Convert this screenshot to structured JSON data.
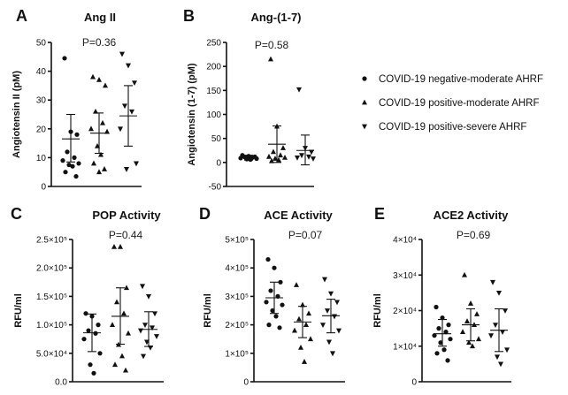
{
  "legend": [
    {
      "label": "COVID-19 negative-moderate AHRF",
      "marker": "circle"
    },
    {
      "label": "COVID-19 positive-moderate AHRF",
      "marker": "triangle-up"
    },
    {
      "label": "COVID-19 positive-severe AHRF",
      "marker": "triangle-down"
    }
  ],
  "chart_data": [
    {
      "letter": "A",
      "title": "Ang II",
      "p_value": "P=0.36",
      "type": "scatter",
      "ylabel": "Angiotensin II (pM)",
      "ylim": [
        0,
        50
      ],
      "yticks": [
        {
          "v": 0,
          "label": "0"
        },
        {
          "v": 10,
          "label": "10"
        },
        {
          "v": 20,
          "label": "20"
        },
        {
          "v": 30,
          "label": "30"
        },
        {
          "v": 40,
          "label": "40"
        },
        {
          "v": 50,
          "label": "50"
        }
      ],
      "series": [
        {
          "marker": "circle",
          "mean": 16.5,
          "sd_low": 8.5,
          "sd_high": 25,
          "values": [
            44.5,
            19,
            18,
            12,
            10,
            9,
            8,
            7.5,
            7,
            5,
            3.5
          ]
        },
        {
          "marker": "triangle-up",
          "mean": 18.5,
          "sd_low": 11.5,
          "sd_high": 25.5,
          "values": [
            38,
            37,
            35,
            26,
            22,
            20,
            19,
            14,
            11,
            8,
            6,
            5
          ]
        },
        {
          "marker": "triangle-down",
          "mean": 24.5,
          "sd_low": 14,
          "sd_high": 35,
          "values": [
            46,
            42,
            36,
            28,
            26,
            20,
            8,
            6
          ]
        }
      ]
    },
    {
      "letter": "B",
      "title": "Ang-(1-7)",
      "p_value": "P=0.58",
      "type": "scatter",
      "ylabel": "Angiotensin (1-7) (pM)",
      "ylim": [
        -50,
        250
      ],
      "yticks": [
        {
          "v": -50,
          "label": "-50"
        },
        {
          "v": 0,
          "label": "0"
        },
        {
          "v": 50,
          "label": "50"
        },
        {
          "v": 100,
          "label": "100"
        },
        {
          "v": 150,
          "label": "150"
        },
        {
          "v": 200,
          "label": "200"
        },
        {
          "v": 250,
          "label": "250"
        }
      ],
      "series": [
        {
          "marker": "circle",
          "mean": 10,
          "sd_low": 5,
          "sd_high": 15,
          "values": [
            15,
            13,
            12,
            11,
            10,
            9,
            8,
            7,
            6
          ]
        },
        {
          "marker": "triangle-up",
          "mean": 38,
          "sd_low": 0,
          "sd_high": 76,
          "values": [
            215,
            75,
            30,
            22,
            15,
            12,
            10,
            8,
            5,
            3
          ]
        },
        {
          "marker": "triangle-down",
          "mean": 25,
          "sd_low": -5,
          "sd_high": 57,
          "values": [
            152,
            30,
            22,
            15,
            12,
            10,
            8
          ]
        }
      ]
    },
    {
      "letter": "C",
      "title": "POP Activity",
      "p_value": "P=0.44",
      "type": "scatter",
      "ylabel": "RFU/ml",
      "ylim": [
        0,
        250000
      ],
      "yticks": [
        {
          "v": 0,
          "label": "0.0"
        },
        {
          "v": 50000,
          "label": "5.0×10⁴"
        },
        {
          "v": 100000,
          "label": "1.0×10⁵"
        },
        {
          "v": 150000,
          "label": "1.5×10⁵"
        },
        {
          "v": 200000,
          "label": "2.0×10⁵"
        },
        {
          "v": 250000,
          "label": "2.5×10⁵"
        }
      ],
      "series": [
        {
          "marker": "circle",
          "mean": 86000,
          "sd_low": 53000,
          "sd_high": 119000,
          "values": [
            120000,
            115000,
            100000,
            90000,
            85000,
            75000,
            50000,
            30000,
            15000
          ]
        },
        {
          "marker": "triangle-up",
          "mean": 115000,
          "sd_low": 66000,
          "sd_high": 165000,
          "values": [
            237000,
            237000,
            165000,
            140000,
            120000,
            100000,
            85000,
            65000,
            45000,
            30000,
            20000
          ]
        },
        {
          "marker": "triangle-down",
          "mean": 92000,
          "sd_low": 62000,
          "sd_high": 123000,
          "values": [
            168000,
            150000,
            120000,
            100000,
            95000,
            90000,
            80000,
            70000,
            60000,
            45000
          ]
        }
      ]
    },
    {
      "letter": "D",
      "title": "ACE Activity",
      "p_value": "P=0.07",
      "type": "scatter",
      "ylabel": "RFU/ml",
      "ylim": [
        0,
        500000
      ],
      "yticks": [
        {
          "v": 0,
          "label": "0"
        },
        {
          "v": 100000,
          "label": "1×10⁵"
        },
        {
          "v": 200000,
          "label": "2×10⁵"
        },
        {
          "v": 300000,
          "label": "3×10⁵"
        },
        {
          "v": 400000,
          "label": "4×10⁵"
        },
        {
          "v": 500000,
          "label": "5×10⁵"
        }
      ],
      "series": [
        {
          "marker": "circle",
          "mean": 295000,
          "sd_low": 240000,
          "sd_high": 350000,
          "values": [
            430000,
            400000,
            350000,
            320000,
            300000,
            280000,
            270000,
            250000,
            230000,
            200000,
            190000
          ]
        },
        {
          "marker": "triangle-up",
          "mean": 210000,
          "sd_low": 155000,
          "sd_high": 265000,
          "values": [
            340000,
            270000,
            240000,
            220000,
            200000,
            180000,
            150000,
            120000,
            70000
          ]
        },
        {
          "marker": "triangle-down",
          "mean": 232000,
          "sd_low": 172000,
          "sd_high": 290000,
          "values": [
            360000,
            310000,
            280000,
            250000,
            230000,
            200000,
            180000,
            140000,
            100000
          ]
        }
      ]
    },
    {
      "letter": "E",
      "title": "ACE2 Activity",
      "p_value": "P=0.69",
      "type": "scatter",
      "ylabel": "RFU/ml",
      "ylim": [
        0,
        40000
      ],
      "yticks": [
        {
          "v": 0,
          "label": "0"
        },
        {
          "v": 10000,
          "label": "1×10⁴"
        },
        {
          "v": 20000,
          "label": "2×10⁴"
        },
        {
          "v": 30000,
          "label": "3×10⁴"
        },
        {
          "v": 40000,
          "label": "4×10⁴"
        }
      ],
      "series": [
        {
          "marker": "circle",
          "mean": 13500,
          "sd_low": 10000,
          "sd_high": 17500,
          "values": [
            21000,
            18000,
            16000,
            15000,
            14000,
            13000,
            12000,
            11000,
            9000,
            8000,
            6000
          ]
        },
        {
          "marker": "triangle-up",
          "mean": 16000,
          "sd_low": 11500,
          "sd_high": 20500,
          "values": [
            30000,
            22000,
            19000,
            17000,
            16000,
            14000,
            12000,
            11000,
            10000
          ]
        },
        {
          "marker": "triangle-down",
          "mean": 14500,
          "sd_low": 8500,
          "sd_high": 20500,
          "values": [
            28000,
            25000,
            20000,
            16000,
            14000,
            13000,
            9000,
            7000,
            5000
          ]
        }
      ]
    }
  ]
}
